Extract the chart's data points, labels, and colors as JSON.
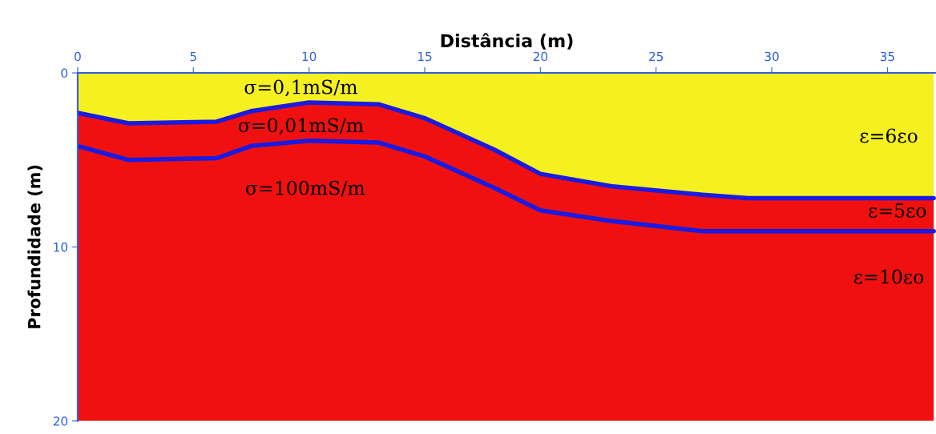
{
  "chart_data": {
    "type": "area",
    "stacked": true,
    "xlabel": "Distância (m)",
    "ylabel": "Profundidade (m)",
    "x": [
      0,
      2.2,
      6,
      7.5,
      10,
      13,
      15,
      18,
      20,
      23,
      27,
      29,
      37
    ],
    "series": [
      {
        "color": "#f5f020",
        "values": [
          2.3,
          2.9,
          2.8,
          2.2,
          1.7,
          1.8,
          2.6,
          4.4,
          5.8,
          6.5,
          7.0,
          7.2,
          7.2
        ]
      },
      {
        "color": "#f01010",
        "values": [
          1.9,
          2.1,
          2.1,
          2.0,
          2.2,
          2.2,
          2.2,
          2.2,
          2.1,
          2.0,
          2.1,
          1.9,
          1.9
        ]
      },
      {
        "color": "#f01010",
        "values": [
          15.8,
          15.0,
          15.1,
          15.8,
          16.1,
          16.0,
          15.2,
          13.4,
          12.1,
          11.5,
          10.9,
          10.9,
          10.9
        ]
      },
      {
        "type": "line",
        "color": "#1a1ae0",
        "values": [
          2.3,
          2.9,
          2.8,
          2.2,
          1.7,
          1.8,
          2.6,
          4.4,
          5.8,
          6.5,
          7.0,
          7.2,
          7.2
        ]
      },
      {
        "type": "line",
        "color": "#1a1ae0",
        "values": [
          4.2,
          5.0,
          4.9,
          4.2,
          3.9,
          4.0,
          4.8,
          6.6,
          7.9,
          8.5,
          9.1,
          9.1,
          9.1
        ]
      }
    ],
    "xlim": [
      0,
      37.1
    ],
    "ylim": [
      20,
      0
    ],
    "xticks": [
      0,
      5,
      10,
      15,
      20,
      25,
      30,
      35
    ],
    "yticks": [
      0,
      10,
      20
    ],
    "annotations": [
      "σ=0,1mS/m",
      "σ=0,01mS/m",
      "σ=100mS/m",
      "ε=6εo",
      "ε=5εo",
      "ε=10εo"
    ]
  }
}
